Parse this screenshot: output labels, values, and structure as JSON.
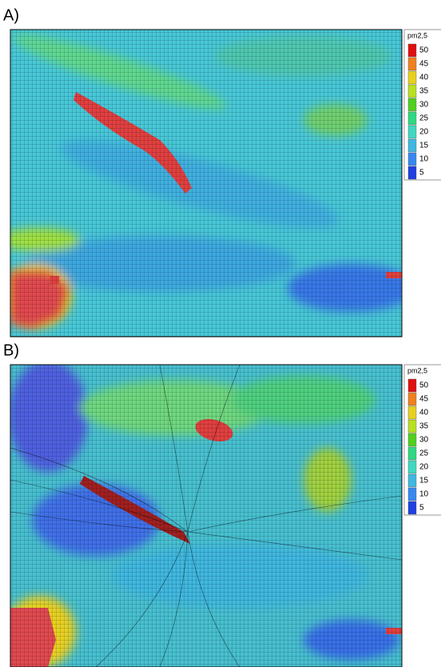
{
  "panels": [
    {
      "label": "A)",
      "legend": {
        "title": "pm2,5",
        "levels": [
          50,
          45,
          40,
          35,
          30,
          25,
          20,
          15,
          10,
          5
        ]
      }
    },
    {
      "label": "B)",
      "legend": {
        "title": "pm2,5",
        "levels": [
          50,
          45,
          40,
          35,
          30,
          25,
          20,
          15,
          10,
          5
        ]
      }
    }
  ],
  "level_colors": [
    "#e01010",
    "#f08020",
    "#e8d020",
    "#b8e020",
    "#50d020",
    "#30d880",
    "#40d8c0",
    "#40b8e0",
    "#3888f0",
    "#2040e0"
  ]
}
